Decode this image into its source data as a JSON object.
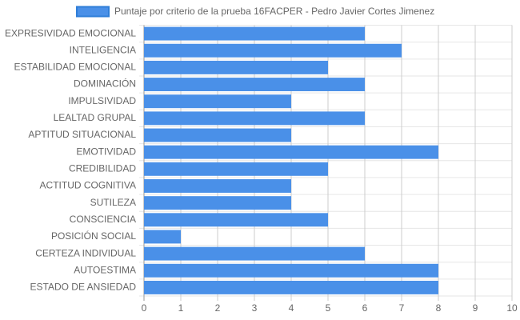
{
  "chart_data": {
    "type": "bar",
    "orientation": "horizontal",
    "categories": [
      "EXPRESIVIDAD EMOCIONAL",
      "INTELIGENCIA",
      "ESTABILIDAD EMOCIONAL",
      "DOMINACIÓN",
      "IMPULSIVIDAD",
      "LEALTAD GRUPAL",
      "APTITUD SITUACIONAL",
      "EMOTIVIDAD",
      "CREDIBILIDAD",
      "ACTITUD COGNITIVA",
      "SUTILEZA",
      "CONSCIENCIA",
      "POSICIÓN SOCIAL",
      "CERTEZA INDIVIDUAL",
      "AUTOESTIMA",
      "ESTADO DE ANSIEDAD"
    ],
    "series": [
      {
        "name": "Puntaje por criterio de la prueba 16FACPER - Pedro Javier Cortes Jimenez",
        "color": "#4a90e8",
        "values": [
          6,
          7,
          5,
          6,
          4,
          6,
          4,
          8,
          5,
          4,
          4,
          5,
          1,
          6,
          8,
          8
        ]
      }
    ],
    "xlim": [
      0,
      10
    ],
    "xticks": [
      0,
      1,
      2,
      3,
      4,
      5,
      6,
      7,
      8,
      9,
      10
    ],
    "grid": true,
    "legend": "top"
  }
}
